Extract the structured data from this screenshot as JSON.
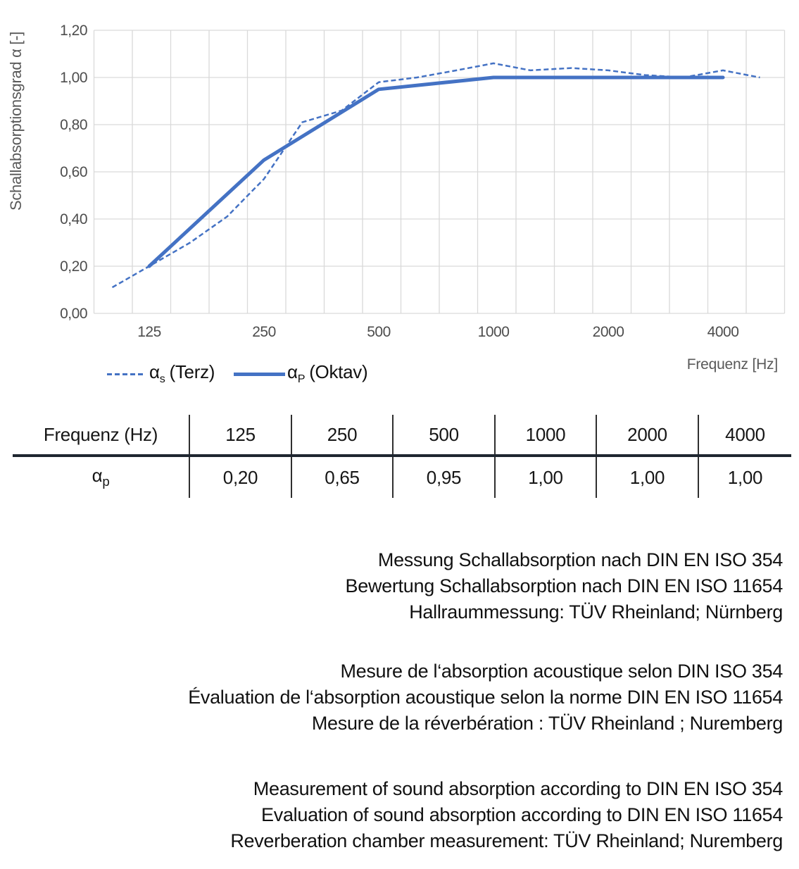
{
  "chart_data": {
    "type": "line",
    "x_scale": "log",
    "xlabel": "Frequenz [Hz]",
    "ylabel": "Schallabsorptionsgrad α [-]",
    "ylim": [
      0,
      1.2
    ],
    "y_tick_step": 0.2,
    "grid": true,
    "legend_position": "bottom-left",
    "colors": {
      "series_blue": "#4472C4",
      "gridline": "#D9D9D9",
      "tick_text": "#4d4d4d",
      "axis_title_text": "#595959"
    },
    "y_ticks": [
      {
        "label": "1,20",
        "value": 1.2
      },
      {
        "label": "1,00",
        "value": 1.0
      },
      {
        "label": "0,80",
        "value": 0.8
      },
      {
        "label": "0,60",
        "value": 0.6
      },
      {
        "label": "0,40",
        "value": 0.4
      },
      {
        "label": "0,20",
        "value": 0.2
      },
      {
        "label": "0,00",
        "value": 0.0
      }
    ],
    "x_ticks": [
      {
        "label": "125",
        "hz": 125
      },
      {
        "label": "250",
        "hz": 250
      },
      {
        "label": "500",
        "hz": 500
      },
      {
        "label": "1000",
        "hz": 1000
      },
      {
        "label": "2000",
        "hz": 2000
      },
      {
        "label": "4000",
        "hz": 4000
      }
    ],
    "series": [
      {
        "name": "αs (Terz)",
        "style": "dashed",
        "width": 2.5,
        "points": [
          [
            100,
            0.11
          ],
          [
            125,
            0.2
          ],
          [
            160,
            0.3
          ],
          [
            200,
            0.41
          ],
          [
            250,
            0.57
          ],
          [
            315,
            0.81
          ],
          [
            400,
            0.86
          ],
          [
            500,
            0.98
          ],
          [
            630,
            1.0
          ],
          [
            800,
            1.03
          ],
          [
            1000,
            1.06
          ],
          [
            1250,
            1.03
          ],
          [
            1600,
            1.04
          ],
          [
            2000,
            1.03
          ],
          [
            2500,
            1.01
          ],
          [
            3150,
            1.0
          ],
          [
            4000,
            1.03
          ],
          [
            5000,
            1.0
          ]
        ]
      },
      {
        "name": "αP (Oktav)",
        "style": "solid",
        "width": 5,
        "points": [
          [
            125,
            0.2
          ],
          [
            250,
            0.65
          ],
          [
            500,
            0.95
          ],
          [
            1000,
            1.0
          ],
          [
            2000,
            1.0
          ],
          [
            4000,
            1.0
          ]
        ]
      }
    ]
  },
  "legend": {
    "items": [
      {
        "alpha": "α",
        "sub": "s",
        "rest": "(Terz)",
        "style": "dashed"
      },
      {
        "alpha": "α",
        "sub": "P",
        "rest": "(Oktav)",
        "style": "solid"
      }
    ]
  },
  "table": {
    "header_label": "Frequenz (Hz)",
    "frequencies": [
      "125",
      "250",
      "500",
      "1000",
      "2000",
      "4000"
    ],
    "row_label_alpha": "α",
    "row_label_sub": "p",
    "values": [
      "0,20",
      "0,65",
      "0,95",
      "1,00",
      "1,00",
      "1,00"
    ]
  },
  "notes": {
    "german": [
      "Messung Schallabsorption nach DIN EN ISO 354",
      "Bewertung Schallabsorption nach DIN EN ISO 11654",
      "Hallraummessung: TÜV Rheinland; Nürnberg"
    ],
    "french": [
      "Mesure de l‘absorption acoustique selon DIN ISO 354",
      "Évaluation de l‘absorption acoustique selon la norme DIN EN ISO 11654",
      "Mesure de la réverbération : TÜV Rheinland ; Nuremberg"
    ],
    "english": [
      "Measurement of sound absorption according to DIN EN ISO 354",
      "Evaluation of sound absorption according to DIN EN ISO 11654",
      "Reverberation chamber measurement: TÜV Rheinland; Nuremberg"
    ]
  }
}
